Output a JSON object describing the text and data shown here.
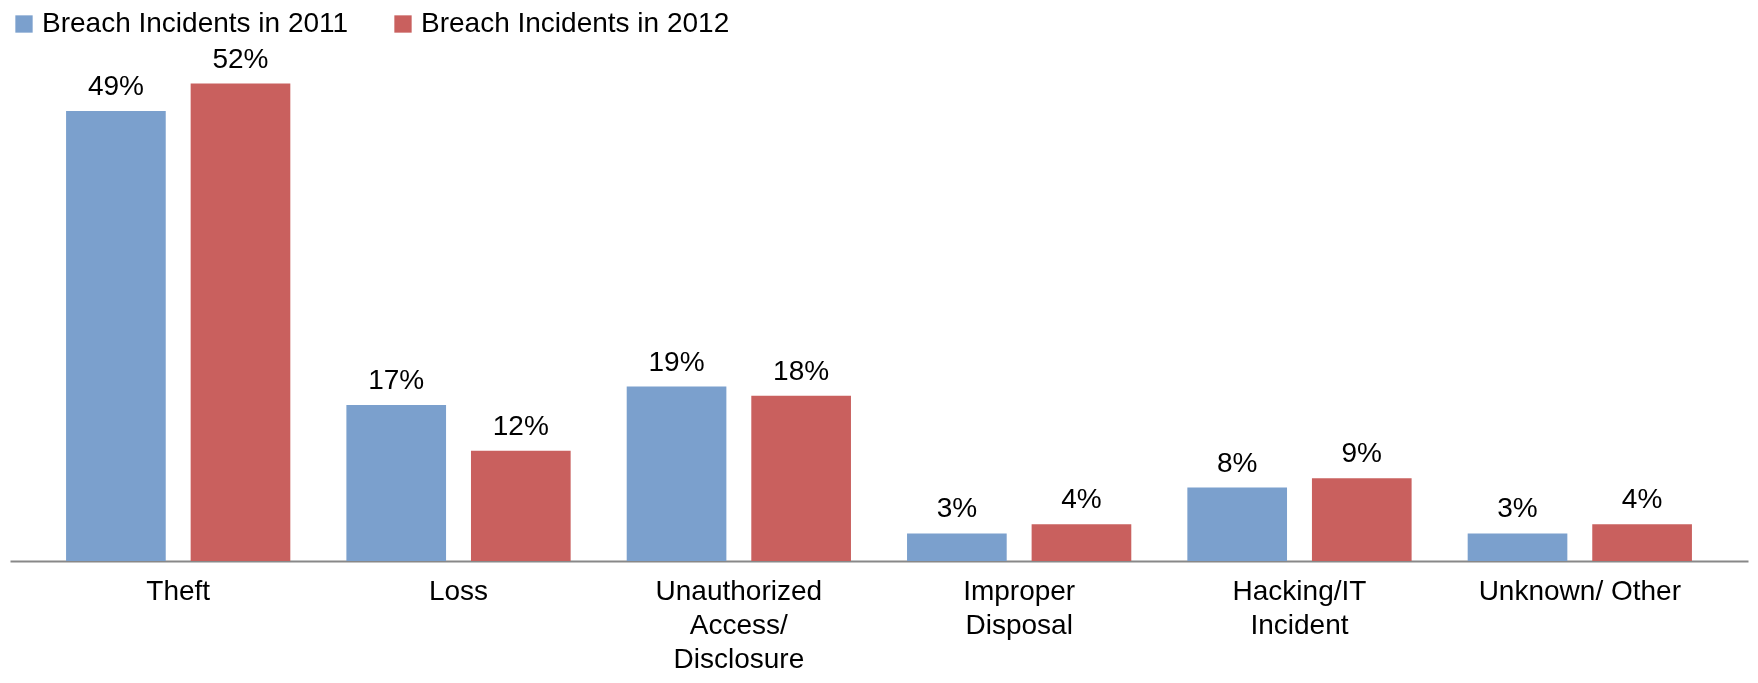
{
  "chart_data": {
    "type": "bar",
    "categories": [
      "Theft",
      "Loss",
      "Unauthorized Access/ Disclosure",
      "Improper Disposal",
      "Hacking/IT Incident",
      "Unknown/ Other"
    ],
    "series": [
      {
        "name": "Breach Incidents in 2011",
        "color": "#7ba0cd",
        "values": [
          49,
          17,
          19,
          3,
          8,
          3
        ],
        "value_labels": [
          "49%",
          "17%",
          "19%",
          "3%",
          "8%",
          "3%"
        ]
      },
      {
        "name": "Breach Incidents in 2012",
        "color": "#c9605e",
        "values": [
          52,
          12,
          18,
          4,
          9,
          4
        ],
        "value_labels": [
          "52%",
          "12%",
          "18%",
          "4%",
          "9%",
          "4%"
        ]
      }
    ],
    "legend": "top",
    "grid": false
  }
}
